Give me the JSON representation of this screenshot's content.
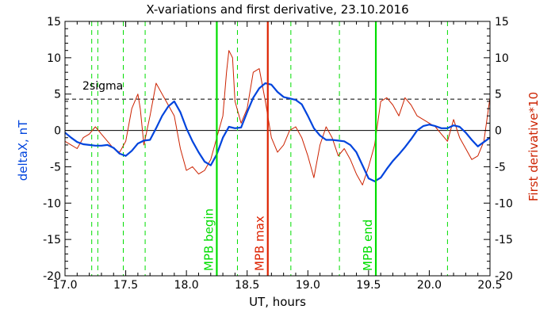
{
  "chart_data": {
    "type": "line",
    "title": "X-variations and first derivative, 23.10.2016",
    "xlabel": "UT, hours",
    "ylabel_left": "deltaX, nT",
    "ylabel_right": "First derivative*10",
    "xlim": [
      17.0,
      20.5
    ],
    "ylim": [
      -20,
      15
    ],
    "x_ticks": [
      "17.0",
      "17.5",
      "18.0",
      "18.5",
      "19.0",
      "19.5",
      "20.0",
      "20.5"
    ],
    "y_ticks": [
      "15",
      "10",
      "5",
      "0",
      "-5",
      "-10",
      "-15",
      "-20"
    ],
    "grid": false,
    "threshold": {
      "label": "2sigma",
      "value": 4.3
    },
    "events": [
      {
        "label": "MPB begin",
        "x": 18.25,
        "color": "#00dd00"
      },
      {
        "label": "MPB max",
        "x": 18.67,
        "color": "#dd2200"
      },
      {
        "label": "MPB end",
        "x": 19.56,
        "color": "#00dd00"
      }
    ],
    "dashed_markers_x": [
      17.22,
      17.27,
      17.48,
      17.66,
      18.42,
      18.86,
      19.26,
      20.15
    ],
    "series": [
      {
        "name": "deltaX, nT",
        "color": "#0044dd",
        "x": [
          17.0,
          17.05,
          17.1,
          17.15,
          17.2,
          17.25,
          17.3,
          17.35,
          17.4,
          17.45,
          17.5,
          17.55,
          17.6,
          17.65,
          17.7,
          17.75,
          17.8,
          17.85,
          17.9,
          17.95,
          18.0,
          18.05,
          18.1,
          18.15,
          18.2,
          18.25,
          18.3,
          18.35,
          18.4,
          18.45,
          18.5,
          18.55,
          18.6,
          18.65,
          18.7,
          18.75,
          18.8,
          18.85,
          18.9,
          18.95,
          19.0,
          19.05,
          19.1,
          19.15,
          19.2,
          19.25,
          19.3,
          19.35,
          19.4,
          19.45,
          19.5,
          19.55,
          19.6,
          19.65,
          19.7,
          19.75,
          19.8,
          19.85,
          19.9,
          19.95,
          20.0,
          20.05,
          20.1,
          20.15,
          20.2,
          20.25,
          20.3,
          20.35,
          20.4,
          20.45,
          20.5
        ],
        "values": [
          -0.3,
          -1.0,
          -1.6,
          -1.9,
          -2.0,
          -2.1,
          -2.1,
          -2.0,
          -2.4,
          -3.2,
          -3.5,
          -2.8,
          -1.8,
          -1.4,
          -1.3,
          0.3,
          2.0,
          3.3,
          4.0,
          2.5,
          0.3,
          -1.5,
          -3.0,
          -4.3,
          -4.8,
          -3.3,
          -1.0,
          0.5,
          0.3,
          0.4,
          2.5,
          4.5,
          5.8,
          6.5,
          6.3,
          5.3,
          4.6,
          4.4,
          4.2,
          3.6,
          2.0,
          0.3,
          -0.7,
          -1.3,
          -1.3,
          -1.4,
          -1.5,
          -2.0,
          -3.0,
          -4.8,
          -6.6,
          -7.0,
          -6.5,
          -5.3,
          -4.2,
          -3.3,
          -2.3,
          -1.2,
          0.0,
          0.6,
          0.8,
          0.6,
          0.3,
          0.3,
          0.7,
          0.5,
          -0.3,
          -1.3,
          -2.2,
          -1.6,
          -1.0
        ]
      },
      {
        "name": "First derivative*10",
        "color": "#cc2200",
        "x": [
          17.0,
          17.05,
          17.1,
          17.15,
          17.2,
          17.25,
          17.3,
          17.35,
          17.4,
          17.45,
          17.5,
          17.55,
          17.6,
          17.62,
          17.65,
          17.7,
          17.75,
          17.8,
          17.85,
          17.9,
          17.95,
          18.0,
          18.05,
          18.1,
          18.15,
          18.2,
          18.25,
          18.3,
          18.33,
          18.35,
          18.38,
          18.4,
          18.45,
          18.5,
          18.55,
          18.6,
          18.65,
          18.7,
          18.75,
          18.8,
          18.85,
          18.9,
          18.95,
          19.0,
          19.05,
          19.1,
          19.15,
          19.2,
          19.25,
          19.3,
          19.35,
          19.4,
          19.45,
          19.5,
          19.55,
          19.6,
          19.65,
          19.7,
          19.75,
          19.8,
          19.85,
          19.9,
          19.95,
          20.0,
          20.05,
          20.1,
          20.15,
          20.2,
          20.25,
          20.3,
          20.35,
          20.4,
          20.45,
          20.5
        ],
        "values": [
          -1.5,
          -2.0,
          -2.5,
          -1.0,
          -0.5,
          0.5,
          -0.5,
          -1.5,
          -2.5,
          -3.0,
          -1.5,
          3.0,
          5.0,
          3.0,
          -2.0,
          2.0,
          6.5,
          5.0,
          3.5,
          2.0,
          -2.5,
          -5.5,
          -5.0,
          -6.0,
          -5.5,
          -4.0,
          -1.0,
          2.0,
          8.0,
          11.0,
          10.0,
          4.0,
          1.0,
          3.0,
          8.0,
          8.5,
          4.0,
          -1.0,
          -3.0,
          -2.0,
          0.0,
          0.5,
          -1.0,
          -3.5,
          -6.5,
          -2.0,
          0.5,
          -1.0,
          -3.5,
          -2.5,
          -4.0,
          -6.0,
          -7.5,
          -5.0,
          -2.0,
          4.0,
          4.5,
          3.5,
          2.0,
          4.5,
          3.5,
          2.0,
          1.5,
          1.0,
          0.5,
          -0.5,
          -1.5,
          1.5,
          -1.0,
          -2.5,
          -4.0,
          -3.5,
          -1.5,
          4.5
        ]
      }
    ]
  }
}
